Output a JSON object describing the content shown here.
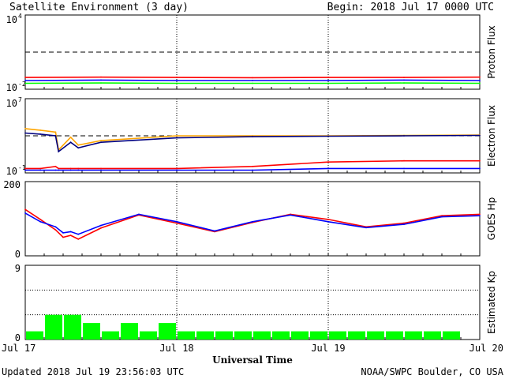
{
  "header": {
    "title": "Satellite Environment (3 day)",
    "begin": "Begin:  2018 Jul 17 0000 UTC"
  },
  "footer": {
    "updated": "Updated 2018 Jul 19 23:56:03 UTC",
    "credit": "NOAA/SWPC Boulder, CO USA"
  },
  "x_axis": {
    "title": "Universal Time",
    "tick_labels": [
      "Jul 17",
      "Jul 18",
      "Jul 19",
      "Jul 20"
    ]
  },
  "colors": {
    "red": "#ff0000",
    "blue": "#0000ff",
    "green": "#00ff00",
    "orange": "#ffa500",
    "navy": "#00007f"
  },
  "chart_data": [
    {
      "type": "line",
      "ylabel": "Proton Flux",
      "y_tick_labels": {
        "top": "10",
        "top_exp": "4",
        "bottom": "10",
        "bottom_exp": "-2"
      },
      "scale": "log",
      "ylim": [
        0.01,
        10000
      ],
      "threshold": 10,
      "x": [
        0,
        0.5,
        1,
        1.5,
        2,
        2.5,
        3
      ],
      "series": [
        {
          "color": "red",
          "values": [
            0.09,
            0.095,
            0.09,
            0.085,
            0.09,
            0.09,
            0.095
          ]
        },
        {
          "color": "blue",
          "values": [
            0.05,
            0.055,
            0.05,
            0.05,
            0.05,
            0.055,
            0.05
          ]
        },
        {
          "color": "green",
          "values": [
            0.03,
            0.032,
            0.03,
            0.03,
            0.03,
            0.032,
            0.03
          ]
        }
      ]
    },
    {
      "type": "line",
      "ylabel": "Electron Flux",
      "y_tick_labels": {
        "top": "10",
        "top_exp": "7",
        "bottom": "10",
        "bottom_exp": "-1"
      },
      "scale": "log",
      "ylim": [
        0.1,
        10000000
      ],
      "threshold": 1000,
      "x": [
        0,
        0.1,
        0.2,
        0.22,
        0.3,
        0.35,
        0.5,
        1,
        1.5,
        2,
        2.5,
        3
      ],
      "series": [
        {
          "color": "orange",
          "values": [
            6000,
            4000,
            2500,
            30,
            700,
            100,
            300,
            1000,
            1000,
            1000,
            1100,
            1200
          ]
        },
        {
          "color": "navy",
          "values": [
            2000,
            1500,
            1000,
            20,
            200,
            50,
            200,
            600,
            800,
            900,
            1000,
            1100
          ]
        },
        {
          "color": "red",
          "values": [
            0.3,
            0.3,
            0.5,
            0.3,
            0.3,
            0.3,
            0.3,
            0.3,
            0.5,
            1.5,
            2,
            2
          ]
        },
        {
          "color": "blue",
          "values": [
            0.2,
            0.2,
            0.2,
            0.2,
            0.2,
            0.2,
            0.2,
            0.2,
            0.2,
            0.3,
            0.3,
            0.3
          ]
        }
      ]
    },
    {
      "type": "line",
      "ylabel": "GOES Hp",
      "y_tick_labels": {
        "top": "200",
        "bottom": "0"
      },
      "scale": "linear",
      "ylim": [
        0,
        200
      ],
      "x": [
        0,
        0.1,
        0.2,
        0.25,
        0.3,
        0.35,
        0.5,
        0.75,
        1.0,
        1.25,
        1.5,
        1.75,
        2.0,
        2.25,
        2.5,
        2.75,
        3.0
      ],
      "series": [
        {
          "color": "red",
          "values": [
            125,
            98,
            70,
            50,
            55,
            45,
            75,
            110,
            88,
            65,
            90,
            112,
            98,
            78,
            88,
            108,
            112
          ]
        },
        {
          "color": "blue",
          "values": [
            115,
            92,
            78,
            62,
            65,
            58,
            82,
            112,
            92,
            67,
            92,
            110,
            92,
            76,
            85,
            105,
            108
          ]
        }
      ]
    },
    {
      "type": "bar",
      "ylabel": "Estimated Kp",
      "y_tick_labels": {
        "top": "9",
        "bottom": "0"
      },
      "scale": "linear",
      "ylim": [
        0,
        9
      ],
      "x_start": [
        0,
        0.125,
        0.25,
        0.375,
        0.5,
        0.625,
        0.75,
        0.875,
        1.0,
        1.125,
        1.25,
        1.375,
        1.5,
        1.625,
        1.75,
        1.875,
        2.0,
        2.125,
        2.25,
        2.375,
        2.5,
        2.625,
        2.75,
        2.875
      ],
      "values": [
        1,
        3,
        3,
        2,
        1,
        2,
        1,
        2,
        1,
        1,
        1,
        1,
        1,
        1,
        1,
        1,
        1,
        1,
        1,
        1,
        1,
        1,
        1,
        0
      ],
      "color": "green"
    }
  ]
}
